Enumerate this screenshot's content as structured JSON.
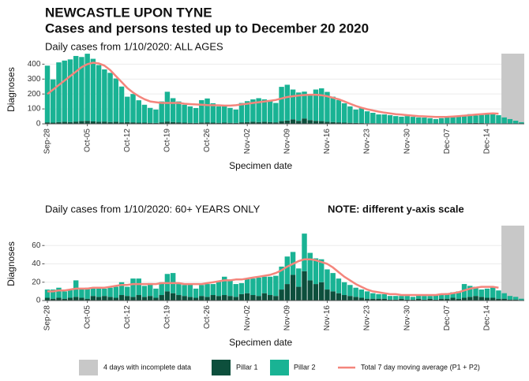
{
  "header": {
    "title": "NEWCASTLE UPON TYNE",
    "subtitle": "Cases and persons tested up to December 20 2020"
  },
  "chart_data": [
    {
      "type": "bar",
      "stacked": true,
      "title": "Daily cases from 1/10/2020: ALL AGES",
      "y_label": "Diagnoses",
      "x_label": "Specimen date",
      "ylim": [
        0,
        460
      ],
      "yticks": [
        0,
        100,
        200,
        300,
        400
      ],
      "grid": true,
      "shade": {
        "label": "4 days with incomplete data",
        "days": 4,
        "color": "#c8c8c8"
      },
      "categories": [
        "Sep-28",
        null,
        null,
        null,
        null,
        null,
        null,
        "Oct-05",
        null,
        null,
        null,
        null,
        null,
        null,
        "Oct-12",
        null,
        null,
        null,
        null,
        null,
        null,
        "Oct-19",
        null,
        null,
        null,
        null,
        null,
        null,
        "Oct-26",
        null,
        null,
        null,
        null,
        null,
        null,
        "Nov-02",
        null,
        null,
        null,
        null,
        null,
        null,
        "Nov-09",
        null,
        null,
        null,
        null,
        null,
        null,
        "Nov-16",
        null,
        null,
        null,
        null,
        null,
        null,
        "Nov-23",
        null,
        null,
        null,
        null,
        null,
        null,
        "Nov-30",
        null,
        null,
        null,
        null,
        null,
        null,
        "Dec-07",
        null,
        null,
        null,
        null,
        null,
        null,
        "Dec-14",
        null,
        null,
        null,
        null,
        null,
        null
      ],
      "series": [
        {
          "name": "Pillar 1",
          "type": "bar",
          "color": "#0d4f3c",
          "values": [
            10,
            8,
            12,
            14,
            12,
            15,
            18,
            20,
            16,
            14,
            15,
            12,
            14,
            10,
            12,
            10,
            8,
            8,
            7,
            6,
            10,
            15,
            12,
            10,
            8,
            7,
            6,
            9,
            10,
            8,
            7,
            8,
            7,
            6,
            10,
            12,
            14,
            12,
            14,
            12,
            10,
            18,
            22,
            30,
            20,
            36,
            25,
            20,
            18,
            14,
            12,
            10,
            8,
            7,
            6,
            5,
            4,
            4,
            3,
            3,
            3,
            2,
            3,
            2,
            2,
            3,
            2,
            3,
            2,
            3,
            3,
            4,
            3,
            4,
            5,
            6,
            5,
            4,
            4,
            3,
            3,
            2,
            1,
            1
          ]
        },
        {
          "name": "Pillar 2",
          "type": "bar",
          "color": "#19b394",
          "values": [
            380,
            290,
            400,
            410,
            420,
            440,
            430,
            450,
            420,
            380,
            350,
            330,
            290,
            240,
            170,
            190,
            150,
            120,
            100,
            90,
            140,
            200,
            160,
            140,
            120,
            110,
            100,
            150,
            160,
            130,
            110,
            110,
            100,
            90,
            130,
            140,
            150,
            160,
            150,
            140,
            130,
            230,
            240,
            200,
            190,
            180,
            170,
            210,
            220,
            200,
            170,
            150,
            130,
            110,
            90,
            100,
            80,
            70,
            60,
            60,
            55,
            50,
            45,
            50,
            45,
            40,
            40,
            35,
            30,
            35,
            40,
            45,
            50,
            55,
            60,
            50,
            55,
            60,
            65,
            55,
            40,
            30,
            20,
            10
          ]
        },
        {
          "name": "Total 7 day moving average (P1 + P2)",
          "type": "line",
          "color": "#f4857c",
          "values": [
            200,
            230,
            260,
            290,
            320,
            350,
            380,
            400,
            410,
            405,
            390,
            360,
            320,
            280,
            240,
            210,
            185,
            165,
            150,
            145,
            140,
            140,
            140,
            140,
            135,
            132,
            130,
            128,
            126,
            125,
            124,
            122,
            122,
            125,
            130,
            135,
            140,
            145,
            150,
            155,
            160,
            170,
            180,
            185,
            190,
            193,
            195,
            195,
            192,
            185,
            175,
            165,
            150,
            135,
            120,
            108,
            98,
            90,
            82,
            75,
            70,
            65,
            62,
            58,
            55,
            52,
            50,
            48,
            46,
            46,
            47,
            49,
            52,
            55,
            58,
            62,
            65,
            68,
            70,
            68,
            null,
            null,
            null,
            null
          ]
        }
      ]
    },
    {
      "type": "bar",
      "stacked": true,
      "title": "Daily cases from 1/10/2020: 60+ YEARS ONLY",
      "note": "NOTE: different y-axis scale",
      "y_label": "Diagnoses",
      "x_label": "Specimen date",
      "ylim": [
        0,
        80
      ],
      "yticks": [
        0,
        20,
        40,
        60
      ],
      "grid": true,
      "shade": {
        "days": 4,
        "color": "#c8c8c8"
      },
      "categories": [
        "Sep-28",
        null,
        null,
        null,
        null,
        null,
        null,
        "Oct-05",
        null,
        null,
        null,
        null,
        null,
        null,
        "Oct-12",
        null,
        null,
        null,
        null,
        null,
        null,
        "Oct-19",
        null,
        null,
        null,
        null,
        null,
        null,
        "Oct-26",
        null,
        null,
        null,
        null,
        null,
        null,
        "Nov-02",
        null,
        null,
        null,
        null,
        null,
        null,
        "Nov-09",
        null,
        null,
        null,
        null,
        null,
        null,
        "Nov-16",
        null,
        null,
        null,
        null,
        null,
        null,
        "Nov-23",
        null,
        null,
        null,
        null,
        null,
        null,
        "Nov-30",
        null,
        null,
        null,
        null,
        null,
        null,
        "Dec-07",
        null,
        null,
        null,
        null,
        null,
        null,
        "Dec-14",
        null,
        null,
        null,
        null,
        null,
        null
      ],
      "series": [
        {
          "name": "Pillar 1",
          "type": "bar",
          "color": "#0d4f3c",
          "values": [
            3,
            2,
            3,
            2,
            3,
            4,
            3,
            2,
            5,
            4,
            5,
            4,
            3,
            6,
            5,
            4,
            6,
            4,
            5,
            3,
            6,
            10,
            8,
            6,
            5,
            4,
            3,
            5,
            4,
            6,
            5,
            6,
            5,
            4,
            7,
            8,
            6,
            5,
            8,
            6,
            5,
            12,
            18,
            28,
            15,
            32,
            22,
            18,
            20,
            12,
            10,
            8,
            6,
            5,
            4,
            3,
            2,
            2,
            2,
            2,
            1,
            1,
            2,
            1,
            1,
            2,
            1,
            2,
            1,
            2,
            2,
            3,
            2,
            3,
            4,
            5,
            4,
            3,
            3,
            2,
            2,
            1,
            1,
            0
          ]
        },
        {
          "name": "Pillar 2",
          "type": "bar",
          "color": "#19b394",
          "values": [
            9,
            10,
            11,
            8,
            9,
            18,
            10,
            12,
            9,
            10,
            8,
            10,
            12,
            14,
            10,
            20,
            18,
            12,
            14,
            10,
            14,
            19,
            22,
            12,
            12,
            14,
            10,
            12,
            14,
            12,
            16,
            20,
            18,
            14,
            12,
            16,
            18,
            20,
            18,
            20,
            22,
            25,
            30,
            25,
            20,
            41,
            30,
            28,
            25,
            22,
            20,
            16,
            14,
            12,
            10,
            9,
            8,
            6,
            5,
            5,
            4,
            4,
            3,
            4,
            3,
            4,
            4,
            3,
            5,
            4,
            6,
            6,
            8,
            15,
            12,
            10,
            8,
            10,
            12,
            9,
            6,
            4,
            3,
            2
          ]
        },
        {
          "name": "Total 7 day moving average (P1 + P2)",
          "type": "line",
          "color": "#f4857c",
          "values": [
            10,
            10,
            11,
            11,
            12,
            13,
            13,
            13,
            14,
            14,
            14,
            15,
            16,
            17,
            17,
            18,
            18,
            18,
            18,
            18,
            19,
            19,
            19,
            19,
            18,
            18,
            18,
            18,
            19,
            20,
            21,
            22,
            22,
            23,
            23,
            24,
            25,
            26,
            27,
            28,
            30,
            33,
            37,
            40,
            43,
            45,
            45,
            44,
            42,
            40,
            36,
            31,
            26,
            22,
            18,
            15,
            12,
            10,
            9,
            8,
            7,
            7,
            6,
            6,
            6,
            6,
            6,
            6,
            6,
            7,
            7,
            8,
            9,
            11,
            13,
            14,
            15,
            15,
            15,
            14,
            null,
            null,
            null,
            null
          ]
        }
      ]
    }
  ]
}
